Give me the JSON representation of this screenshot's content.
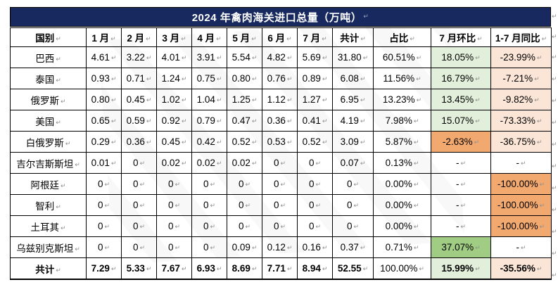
{
  "title": "2024 年禽肉海关进口总量（万吨）",
  "marks": {
    "cell_end": "↵"
  },
  "colors": {
    "title_bg": "#17295E",
    "title_text": "#FFFFFF",
    "green_light": "#E2EFDA",
    "green_strong": "#A0CD83",
    "peach_light": "#FBE5D6",
    "orange_strong": "#F2A96F",
    "border": "#000000"
  },
  "columns": [
    "国别",
    "1 月",
    "2 月",
    "3 月",
    "4 月",
    "5 月",
    "6 月",
    "7 月",
    "共计",
    "占比",
    "7 月环比",
    "1-7 月同比"
  ],
  "chart_data": {
    "type": "table",
    "title": "2024 年禽肉海关进口总量（万吨）",
    "categories": [
      "1月",
      "2月",
      "3月",
      "4月",
      "5月",
      "6月",
      "7月",
      "共计",
      "占比",
      "7月环比",
      "1-7月同比"
    ]
  },
  "rows": [
    {
      "country": "巴西",
      "monthly": [
        "4.61",
        "3.22",
        "4.01",
        "3.91",
        "5.54",
        "4.82",
        "5.69"
      ],
      "total": "31.80",
      "share": "60.51%",
      "mom": "18.05%",
      "mom_style": "green",
      "yoy": "-23.99%",
      "yoy_style": "peach"
    },
    {
      "country": "泰国",
      "monthly": [
        "0.93",
        "0.71",
        "1.24",
        "0.75",
        "0.80",
        "0.76",
        "0.89"
      ],
      "total": "6.08",
      "share": "11.56%",
      "mom": "16.79%",
      "mom_style": "green",
      "yoy": "-7.21%",
      "yoy_style": "peach"
    },
    {
      "country": "俄罗斯",
      "monthly": [
        "0.80",
        "0.45",
        "1.02",
        "1.04",
        "1.25",
        "1.12",
        "1.27"
      ],
      "total": "6.95",
      "share": "13.23%",
      "mom": "13.45%",
      "mom_style": "green",
      "yoy": "-9.82%",
      "yoy_style": "peach"
    },
    {
      "country": "美国",
      "monthly": [
        "0.65",
        "0.59",
        "0.92",
        "0.79",
        "0.47",
        "0.36",
        "0.41"
      ],
      "total": "4.19",
      "share": "7.98%",
      "mom": "15.07%",
      "mom_style": "green",
      "yoy": "-73.33%",
      "yoy_style": "peach"
    },
    {
      "country": "白俄罗斯",
      "monthly": [
        "0.29",
        "0.36",
        "0.45",
        "0.42",
        "0.52",
        "0.53",
        "0.52"
      ],
      "total": "3.09",
      "share": "5.87%",
      "mom": "-2.63%",
      "mom_style": "orange",
      "yoy": "-36.75%",
      "yoy_style": "peach"
    },
    {
      "country": "吉尔吉斯斯坦",
      "monthly": [
        "0.01",
        "0",
        "0.02",
        "0.02",
        "0.02",
        "0",
        "0"
      ],
      "total": "0.07",
      "share": "0.13%",
      "mom": "-",
      "mom_style": "none",
      "yoy": "-",
      "yoy_style": "none"
    },
    {
      "country": "阿根廷",
      "monthly": [
        "0",
        "0",
        "0",
        "0",
        "0",
        "0",
        "0"
      ],
      "total": "0",
      "share": "0.00%",
      "mom": "-",
      "mom_style": "none",
      "yoy": "-100.00%",
      "yoy_style": "orange"
    },
    {
      "country": "智利",
      "monthly": [
        "0",
        "0",
        "0",
        "0",
        "0",
        "0",
        "0"
      ],
      "total": "0",
      "share": "0.00%",
      "mom": "-",
      "mom_style": "none",
      "yoy": "-100.00%",
      "yoy_style": "orange"
    },
    {
      "country": "土耳其",
      "monthly": [
        "0",
        "0",
        "0",
        "0",
        "0",
        "0",
        "0"
      ],
      "total": "0",
      "share": "0.00%",
      "mom": "-",
      "mom_style": "none",
      "yoy": "-100.00%",
      "yoy_style": "orange"
    },
    {
      "country": "乌兹别克斯坦",
      "monthly": [
        "0",
        "0",
        "0",
        "0",
        "0.09",
        "0.12",
        "0.16"
      ],
      "total": "0.37",
      "share": "0.71%",
      "mom": "37.07%",
      "mom_style": "green-strong",
      "yoy": "-",
      "yoy_style": "none"
    },
    {
      "country": "共计",
      "is_total": true,
      "monthly": [
        "7.29",
        "5.33",
        "7.67",
        "6.93",
        "8.69",
        "7.71",
        "8.94"
      ],
      "total": "52.55",
      "share": "100.00%",
      "mom": "15.99%",
      "mom_style": "green",
      "yoy": "-35.56%",
      "yoy_style": "peach"
    }
  ]
}
